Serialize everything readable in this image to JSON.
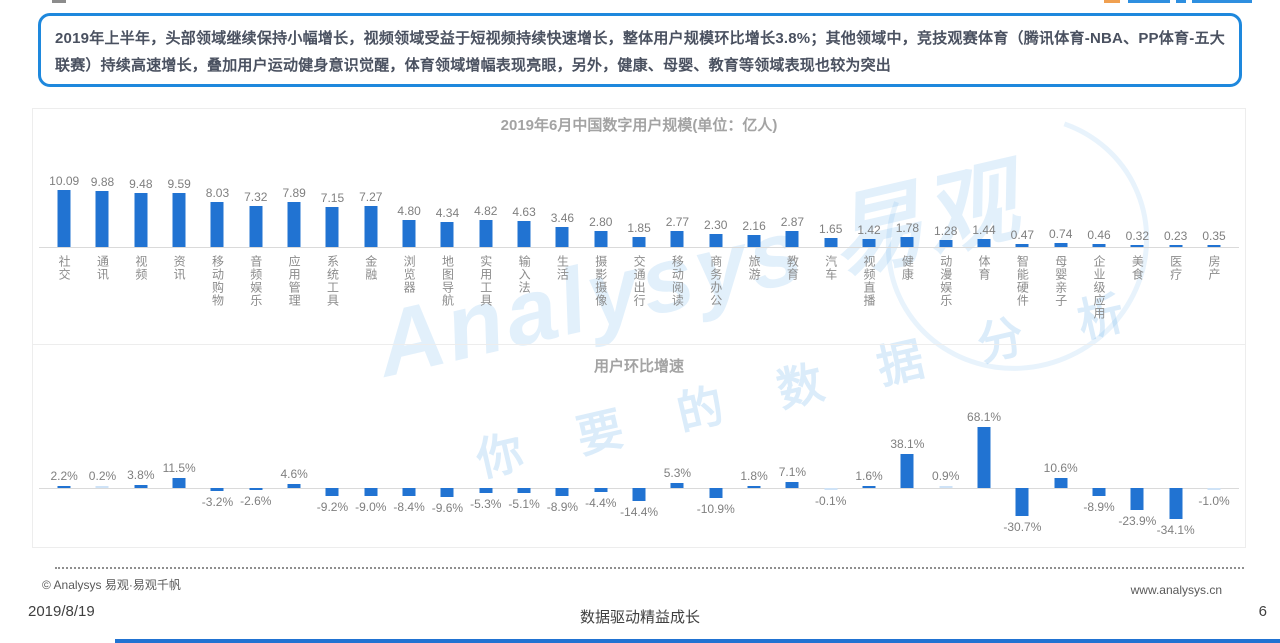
{
  "header": {
    "text": "2019年上半年，头部领域继续保持小幅增长，视频领域受益于短视频持续快速增长，整体用户规模环比增长3.8%；其他领域中，竞技观赛体育（腾讯体育-NBA、PP体育-五大联赛）持续高速增长，叠加用户运动健身意识觉醒，体育领域增幅表现亮眼，另外，健康、母婴、教育等领域表现也较为突出"
  },
  "chart_data": [
    {
      "type": "bar",
      "title": "2019年6月中国数字用户规模(单位：亿人)",
      "unit": "亿人",
      "legend_position": "none",
      "grid": false,
      "categories": [
        "社交",
        "通讯",
        "视频",
        "资讯",
        "移动购物",
        "音频娱乐",
        "应用管理",
        "系统工具",
        "金融",
        "浏览器",
        "地图导航",
        "实用工具",
        "输入法",
        "生活",
        "摄影摄像",
        "交通出行",
        "移动阅读",
        "商务办公",
        "旅游",
        "教育",
        "汽车",
        "视频直播",
        "健康",
        "动漫娱乐",
        "体育",
        "智能硬件",
        "母婴亲子",
        "企业级应用",
        "美食",
        "医疗",
        "房产"
      ],
      "values": [
        10.09,
        9.88,
        9.48,
        9.59,
        8.03,
        7.32,
        7.89,
        7.15,
        7.27,
        4.8,
        4.34,
        4.82,
        4.63,
        3.46,
        2.8,
        1.85,
        2.77,
        2.3,
        2.16,
        2.87,
        1.65,
        1.42,
        1.78,
        1.28,
        1.44,
        0.47,
        0.74,
        0.46,
        0.32,
        0.23,
        0.35
      ],
      "ylim": [
        0,
        11
      ]
    },
    {
      "type": "bar",
      "title": "用户环比增速",
      "unit": "%",
      "legend_position": "none",
      "grid": false,
      "categories": [
        "社交",
        "通讯",
        "视频",
        "资讯",
        "移动购物",
        "音频娱乐",
        "应用管理",
        "系统工具",
        "金融",
        "浏览器",
        "地图导航",
        "实用工具",
        "输入法",
        "生活",
        "摄影摄像",
        "交通出行",
        "移动阅读",
        "商务办公",
        "旅游",
        "教育",
        "汽车",
        "视频直播",
        "健康",
        "动漫娱乐",
        "体育",
        "智能硬件",
        "母婴亲子",
        "企业级应用",
        "美食",
        "医疗",
        "房产"
      ],
      "values": [
        2.2,
        0.2,
        3.8,
        11.5,
        -3.2,
        -2.6,
        4.6,
        -9.2,
        -9.0,
        -8.4,
        -9.6,
        -5.3,
        -5.1,
        -8.9,
        -4.4,
        -14.4,
        5.3,
        -10.9,
        1.8,
        7.1,
        -0.1,
        1.6,
        38.1,
        0.9,
        68.1,
        -30.7,
        10.6,
        -8.9,
        -23.9,
        -34.1,
        -1.0
      ],
      "ylim": [
        -40,
        75
      ]
    }
  ],
  "watermark": {
    "line1": "Analysys 易观",
    "line2": "你 要 的 数 据 分 析"
  },
  "footer": {
    "copyright": "© Analysys 易观·易观千帆",
    "website": "www.analysys.cn",
    "date": "2019/8/19",
    "slogan": "数据驱动精益成长",
    "page_number": "6"
  },
  "colors": {
    "bar": "#2173d2",
    "bar_light": "#cfe3f7",
    "header_border": "#1e88dd",
    "watermark": "#1e88dd"
  }
}
